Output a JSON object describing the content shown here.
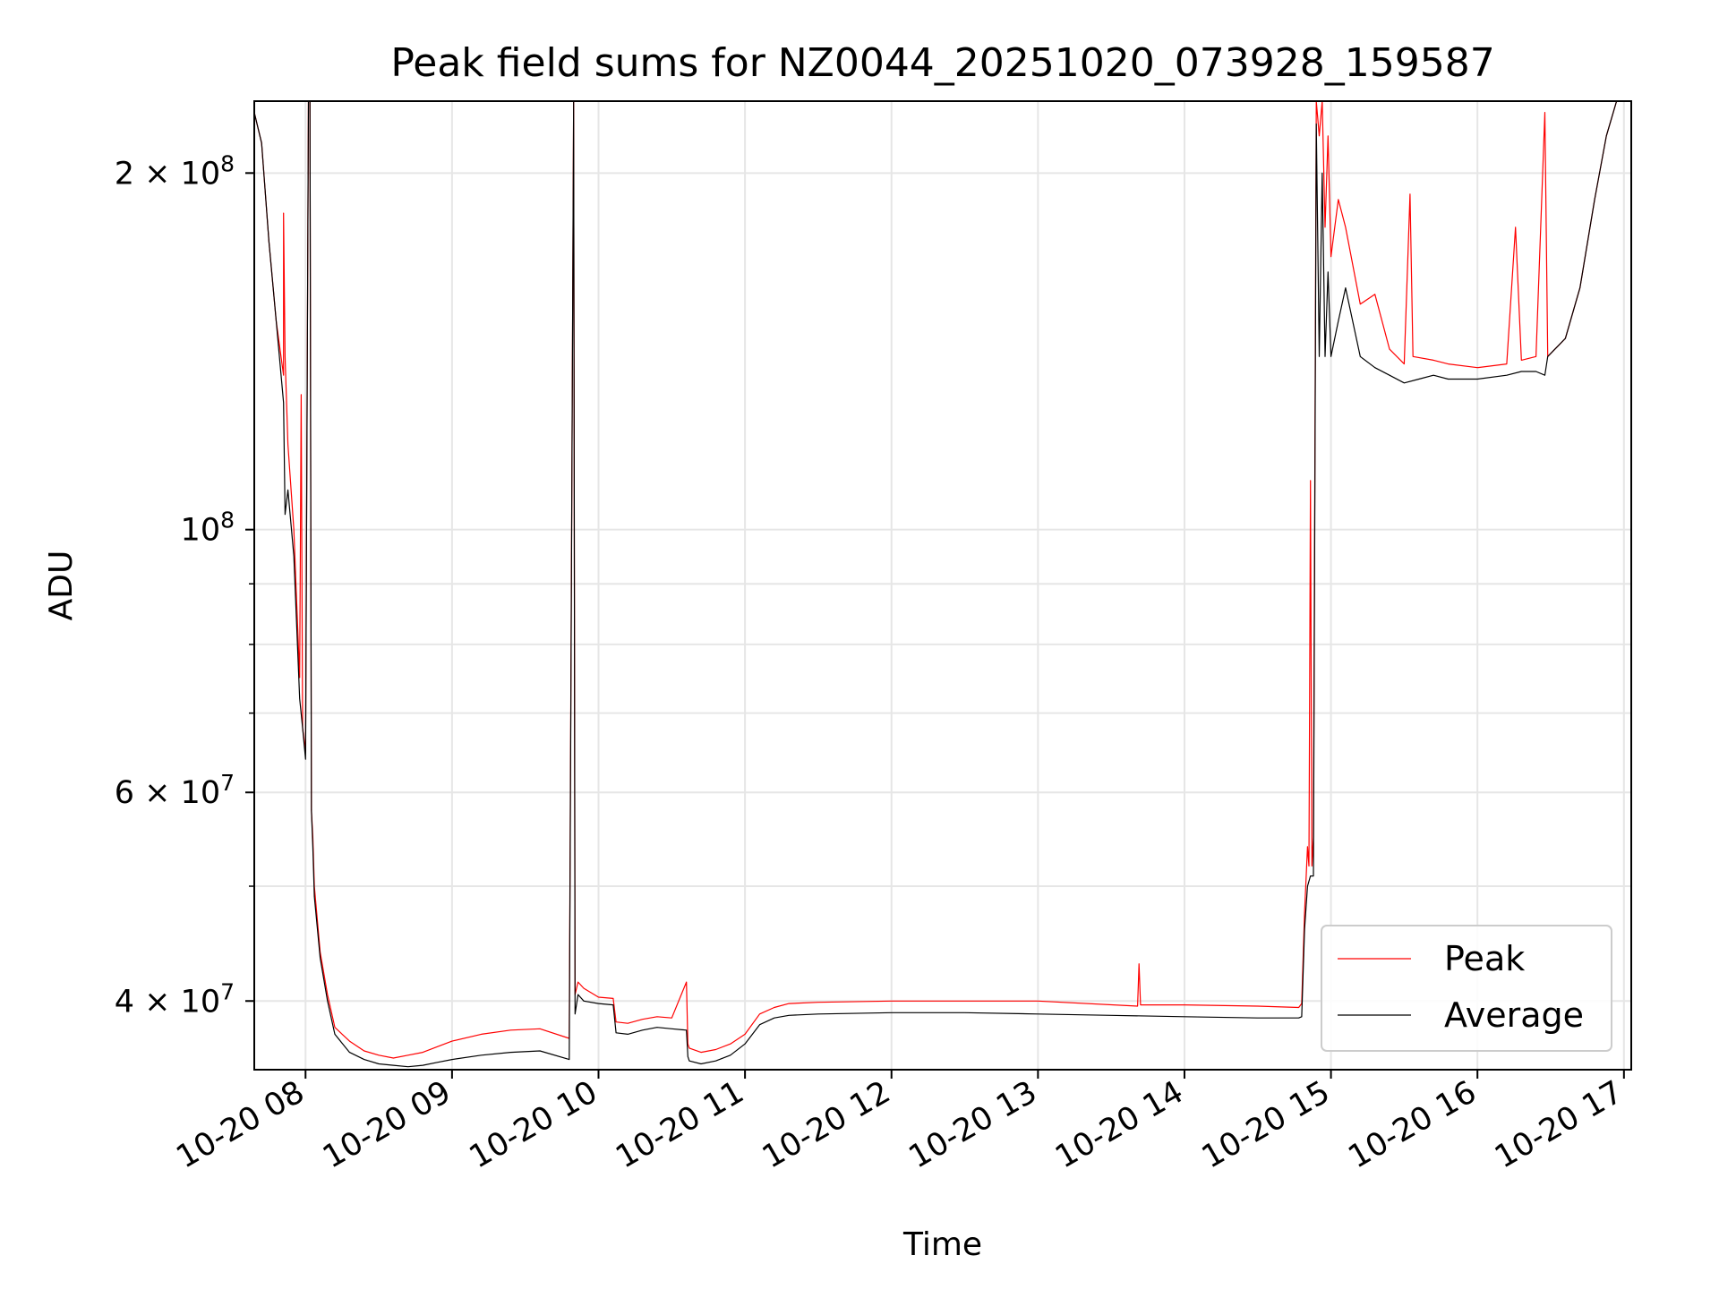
{
  "chart_data": {
    "type": "line",
    "title": "Peak field sums for NZ0044_20251020_073928_159587",
    "xlabel": "Time",
    "ylabel": "ADU",
    "yscale": "log",
    "ylim": [
      35000000,
      230000000
    ],
    "xlim": [
      7.65,
      17.05
    ],
    "grid": true,
    "legend_position": "lower-right",
    "x_ticks": [
      {
        "value": 8,
        "label": "10-20 08"
      },
      {
        "value": 9,
        "label": "10-20 09"
      },
      {
        "value": 10,
        "label": "10-20 10"
      },
      {
        "value": 11,
        "label": "10-20 11"
      },
      {
        "value": 12,
        "label": "10-20 12"
      },
      {
        "value": 13,
        "label": "10-20 13"
      },
      {
        "value": 14,
        "label": "10-20 14"
      },
      {
        "value": 15,
        "label": "10-20 15"
      },
      {
        "value": 16,
        "label": "10-20 16"
      },
      {
        "value": 17,
        "label": "10-20 17"
      }
    ],
    "y_major_ticks": [
      {
        "value": 40000000,
        "label_base": "4 × 10",
        "label_exp": "7"
      },
      {
        "value": 60000000,
        "label_base": "6 × 10",
        "label_exp": "7"
      },
      {
        "value": 100000000,
        "label_base": "10",
        "label_exp": "8"
      },
      {
        "value": 200000000,
        "label_base": "2 × 10",
        "label_exp": "8"
      }
    ],
    "y_minor_ticks": [
      50000000,
      70000000,
      80000000,
      90000000
    ],
    "series": [
      {
        "name": "Peak",
        "color": "#ff0000",
        "x": [
          7.65,
          7.7,
          7.75,
          7.8,
          7.85,
          7.85,
          7.86,
          7.88,
          7.92,
          7.96,
          7.97,
          7.98,
          8.0,
          8.02,
          8.03,
          8.04,
          8.05,
          8.06,
          8.1,
          8.15,
          8.2,
          8.3,
          8.4,
          8.5,
          8.6,
          8.7,
          8.8,
          8.9,
          9.0,
          9.2,
          9.4,
          9.6,
          9.8,
          9.83,
          9.84,
          9.86,
          9.9,
          10.0,
          10.1,
          10.12,
          10.2,
          10.3,
          10.4,
          10.5,
          10.6,
          10.61,
          10.62,
          10.7,
          10.8,
          10.9,
          11.0,
          11.1,
          11.2,
          11.3,
          11.5,
          12.0,
          12.5,
          13.0,
          13.68,
          13.69,
          13.7,
          14.0,
          14.5,
          14.78,
          14.8,
          14.82,
          14.84,
          14.85,
          14.86,
          14.87,
          14.88,
          14.9,
          14.92,
          14.94,
          14.96,
          14.98,
          15.0,
          15.05,
          15.1,
          15.2,
          15.3,
          15.4,
          15.5,
          15.54,
          15.56,
          15.7,
          15.8,
          16.0,
          16.2,
          16.26,
          16.3,
          16.4,
          16.46,
          16.48,
          16.6,
          16.7,
          16.8,
          16.88,
          16.95,
          17.05
        ],
        "y": [
          225000000,
          212000000,
          175000000,
          150000000,
          135000000,
          185000000,
          140000000,
          118000000,
          100000000,
          75000000,
          130000000,
          68000000,
          65000000,
          230000000,
          230000000,
          58000000,
          55000000,
          50000000,
          44000000,
          40500000,
          38000000,
          37000000,
          36300000,
          36000000,
          35800000,
          36000000,
          36200000,
          36600000,
          37000000,
          37500000,
          37800000,
          37900000,
          37200000,
          230000000,
          40500000,
          41500000,
          41000000,
          40300000,
          40200000,
          38400000,
          38300000,
          38600000,
          38800000,
          38700000,
          41500000,
          36800000,
          36500000,
          36200000,
          36400000,
          36800000,
          37500000,
          39000000,
          39500000,
          39800000,
          39900000,
          40000000,
          40000000,
          40000000,
          39600000,
          43000000,
          39700000,
          39700000,
          39600000,
          39500000,
          39800000,
          47500000,
          54000000,
          52000000,
          110000000,
          52000000,
          55000000,
          230000000,
          215000000,
          230000000,
          180000000,
          215000000,
          170000000,
          190000000,
          180000000,
          155000000,
          158000000,
          142000000,
          138000000,
          192000000,
          140000000,
          139000000,
          138000000,
          137000000,
          138000000,
          180000000,
          139000000,
          140000000,
          225000000,
          140000000,
          145000000,
          160000000,
          190000000,
          215000000,
          230000000,
          230000000
        ],
        "line_width": 1.2
      },
      {
        "name": "Average",
        "color": "#000000",
        "x": [
          7.65,
          7.7,
          7.75,
          7.8,
          7.85,
          7.86,
          7.88,
          7.92,
          7.96,
          7.98,
          8.0,
          8.02,
          8.03,
          8.04,
          8.05,
          8.06,
          8.1,
          8.15,
          8.2,
          8.3,
          8.4,
          8.5,
          8.6,
          8.7,
          8.8,
          8.9,
          9.0,
          9.2,
          9.4,
          9.6,
          9.8,
          9.83,
          9.84,
          9.86,
          9.9,
          10.0,
          10.1,
          10.12,
          10.2,
          10.3,
          10.4,
          10.5,
          10.6,
          10.61,
          10.62,
          10.7,
          10.8,
          10.9,
          11.0,
          11.1,
          11.2,
          11.3,
          11.5,
          12.0,
          12.5,
          13.0,
          13.5,
          14.0,
          14.5,
          14.78,
          14.8,
          14.82,
          14.84,
          14.86,
          14.88,
          14.9,
          14.92,
          14.94,
          14.96,
          14.98,
          15.0,
          15.05,
          15.1,
          15.2,
          15.3,
          15.4,
          15.5,
          15.6,
          15.7,
          15.8,
          16.0,
          16.2,
          16.3,
          16.4,
          16.46,
          16.48,
          16.6,
          16.7,
          16.8,
          16.88,
          16.95,
          17.05
        ],
        "y": [
          225000000,
          212000000,
          175000000,
          150000000,
          128000000,
          103000000,
          108000000,
          95000000,
          72000000,
          68000000,
          64000000,
          230000000,
          230000000,
          58000000,
          54000000,
          49000000,
          43500000,
          40000000,
          37500000,
          36200000,
          35700000,
          35400000,
          35300000,
          35200000,
          35300000,
          35500000,
          35700000,
          36000000,
          36200000,
          36300000,
          35700000,
          230000000,
          39000000,
          40500000,
          40000000,
          39800000,
          39700000,
          37600000,
          37500000,
          37800000,
          38000000,
          37900000,
          37800000,
          35900000,
          35600000,
          35400000,
          35600000,
          36000000,
          36800000,
          38200000,
          38700000,
          38900000,
          39000000,
          39100000,
          39100000,
          39000000,
          38900000,
          38800000,
          38700000,
          38700000,
          38800000,
          46000000,
          50000000,
          51000000,
          51000000,
          220000000,
          140000000,
          200000000,
          140000000,
          165000000,
          140000000,
          150000000,
          160000000,
          140000000,
          137000000,
          135000000,
          133000000,
          134000000,
          135000000,
          134000000,
          134000000,
          135000000,
          136000000,
          136000000,
          135000000,
          140000000,
          145000000,
          160000000,
          190000000,
          215000000,
          230000000,
          230000000
        ],
        "line_width": 1.2
      }
    ]
  }
}
